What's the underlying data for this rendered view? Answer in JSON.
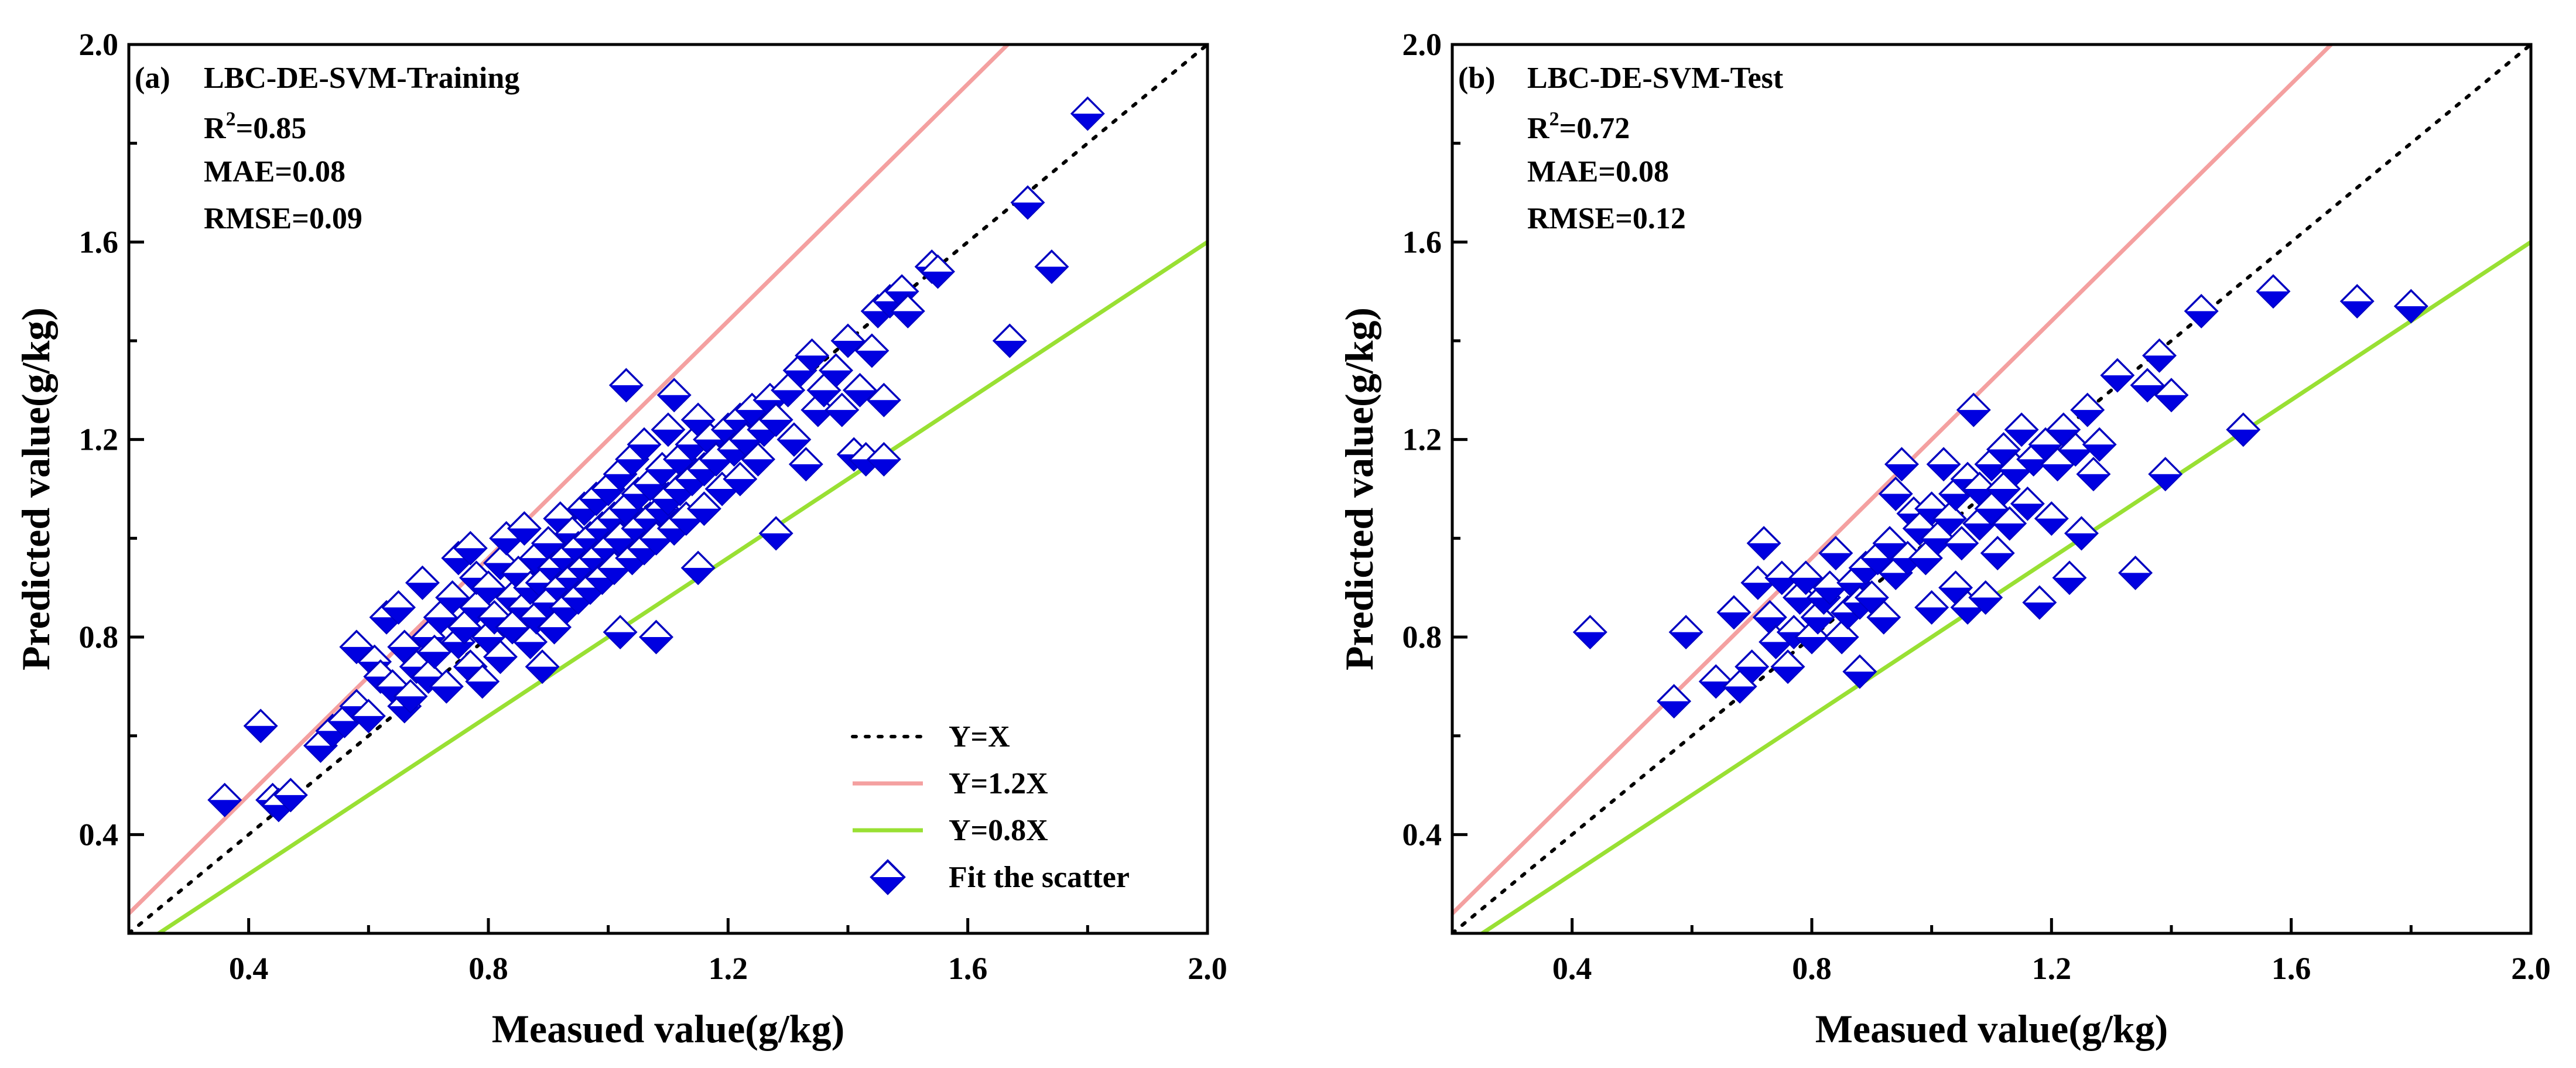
{
  "colors": {
    "one_to_one": "#000000",
    "upper_bound": "#F4A0A0",
    "lower_bound": "#99E033",
    "marker_fill": "#0000E0",
    "marker_edge": "#0000C0"
  },
  "legend": {
    "placement": "bottom-right",
    "items": [
      {
        "label": "Y=X",
        "kind": "dotted-line",
        "series": "one_to_one"
      },
      {
        "label": "Y=1.2X",
        "kind": "line",
        "series": "upper_bound"
      },
      {
        "label": "Y=0.8X",
        "kind": "line",
        "series": "lower_bound"
      },
      {
        "label": "Fit the scatter",
        "kind": "diamond-marker",
        "series": "scatter"
      }
    ]
  },
  "chart_data": [
    {
      "type": "scatter",
      "panel": "(a)",
      "title": "LBC-DE-SVM-Training",
      "metrics": {
        "r2_prefix": "R",
        "r2_sup": "2",
        "r2_value": "=0.85",
        "mae": "MAE=0.08",
        "rmse": "RMSE=0.09"
      },
      "xlabel": "Measued value(g/kg)",
      "ylabel": "Predicted value(g/kg)",
      "xlim": [
        0.2,
        2.0
      ],
      "ylim": [
        0.2,
        2.0
      ],
      "xticks": [
        0.4,
        0.8,
        1.2,
        1.6,
        2.0
      ],
      "yticks": [
        0.4,
        0.8,
        1.2,
        1.6,
        2.0
      ],
      "xtick_labels": [
        "0.4",
        "0.8",
        "1.2",
        "1.6",
        "2.0"
      ],
      "ytick_labels": [
        "0.4",
        "0.8",
        "1.2",
        "1.6",
        "2.0"
      ],
      "reference_lines": [
        {
          "name": "Y=X",
          "slope": 1.0
        },
        {
          "name": "Y=1.2X",
          "slope": 1.2
        },
        {
          "name": "Y=0.8X",
          "slope": 0.8
        }
      ],
      "show_legend": true,
      "points": [
        [
          0.36,
          0.47
        ],
        [
          0.42,
          0.62
        ],
        [
          0.44,
          0.47
        ],
        [
          0.45,
          0.46
        ],
        [
          0.47,
          0.48
        ],
        [
          0.52,
          0.58
        ],
        [
          0.54,
          0.61
        ],
        [
          0.56,
          0.63
        ],
        [
          0.58,
          0.78
        ],
        [
          0.58,
          0.66
        ],
        [
          0.6,
          0.64
        ],
        [
          0.61,
          0.75
        ],
        [
          0.62,
          0.72
        ],
        [
          0.63,
          0.84
        ],
        [
          0.64,
          0.7
        ],
        [
          0.65,
          0.86
        ],
        [
          0.66,
          0.66
        ],
        [
          0.66,
          0.78
        ],
        [
          0.67,
          0.68
        ],
        [
          0.68,
          0.74
        ],
        [
          0.69,
          0.91
        ],
        [
          0.7,
          0.72
        ],
        [
          0.7,
          0.8
        ],
        [
          0.71,
          0.77
        ],
        [
          0.72,
          0.84
        ],
        [
          0.73,
          0.7
        ],
        [
          0.74,
          0.88
        ],
        [
          0.75,
          0.96
        ],
        [
          0.75,
          0.79
        ],
        [
          0.76,
          0.82
        ],
        [
          0.77,
          0.98
        ],
        [
          0.77,
          0.74
        ],
        [
          0.78,
          0.86
        ],
        [
          0.78,
          0.92
        ],
        [
          0.79,
          0.71
        ],
        [
          0.8,
          0.8
        ],
        [
          0.8,
          0.9
        ],
        [
          0.81,
          0.84
        ],
        [
          0.82,
          0.95
        ],
        [
          0.82,
          0.76
        ],
        [
          0.83,
          1.0
        ],
        [
          0.84,
          0.88
        ],
        [
          0.84,
          0.82
        ],
        [
          0.85,
          0.93
        ],
        [
          0.86,
          0.86
        ],
        [
          0.86,
          1.02
        ],
        [
          0.87,
          0.79
        ],
        [
          0.87,
          0.9
        ],
        [
          0.88,
          0.96
        ],
        [
          0.88,
          0.84
        ],
        [
          0.89,
          0.91
        ],
        [
          0.89,
          0.74
        ],
        [
          0.9,
          0.99
        ],
        [
          0.9,
          0.87
        ],
        [
          0.91,
          0.94
        ],
        [
          0.91,
          0.82
        ],
        [
          0.92,
          1.04
        ],
        [
          0.92,
          0.9
        ],
        [
          0.93,
          0.96
        ],
        [
          0.93,
          0.86
        ],
        [
          0.94,
          1.01
        ],
        [
          0.94,
          0.92
        ],
        [
          0.95,
          0.98
        ],
        [
          0.95,
          0.88
        ],
        [
          0.96,
          1.06
        ],
        [
          0.96,
          0.94
        ],
        [
          0.97,
          1.0
        ],
        [
          0.97,
          0.9
        ],
        [
          0.98,
          1.08
        ],
        [
          0.98,
          0.96
        ],
        [
          0.99,
          1.02
        ],
        [
          0.99,
          0.92
        ],
        [
          1.0,
          1.1
        ],
        [
          1.0,
          0.98
        ],
        [
          1.01,
          1.04
        ],
        [
          1.01,
          0.94
        ],
        [
          1.02,
          1.13
        ],
        [
          1.02,
          1.0
        ],
        [
          1.02,
          0.81
        ],
        [
          1.03,
          1.31
        ],
        [
          1.03,
          1.06
        ],
        [
          1.04,
          0.96
        ],
        [
          1.04,
          1.16
        ],
        [
          1.05,
          1.02
        ],
        [
          1.05,
          1.09
        ],
        [
          1.06,
          0.98
        ],
        [
          1.06,
          1.19
        ],
        [
          1.07,
          1.04
        ],
        [
          1.07,
          1.11
        ],
        [
          1.08,
          1.0
        ],
        [
          1.08,
          0.8
        ],
        [
          1.09,
          1.14
        ],
        [
          1.09,
          1.06
        ],
        [
          1.1,
          1.22
        ],
        [
          1.1,
          1.08
        ],
        [
          1.11,
          1.29
        ],
        [
          1.11,
          1.02
        ],
        [
          1.12,
          1.16
        ],
        [
          1.12,
          1.1
        ],
        [
          1.13,
          1.04
        ],
        [
          1.14,
          1.19
        ],
        [
          1.14,
          1.12
        ],
        [
          1.15,
          0.94
        ],
        [
          1.15,
          1.24
        ],
        [
          1.16,
          1.14
        ],
        [
          1.16,
          1.06
        ],
        [
          1.17,
          1.2
        ],
        [
          1.18,
          1.16
        ],
        [
          1.19,
          1.1
        ],
        [
          1.2,
          1.22
        ],
        [
          1.21,
          1.18
        ],
        [
          1.22,
          1.24
        ],
        [
          1.22,
          1.12
        ],
        [
          1.23,
          1.2
        ],
        [
          1.24,
          1.26
        ],
        [
          1.25,
          1.16
        ],
        [
          1.26,
          1.22
        ],
        [
          1.27,
          1.28
        ],
        [
          1.28,
          1.01
        ],
        [
          1.28,
          1.24
        ],
        [
          1.3,
          1.3
        ],
        [
          1.31,
          1.2
        ],
        [
          1.32,
          1.34
        ],
        [
          1.33,
          1.15
        ],
        [
          1.34,
          1.37
        ],
        [
          1.35,
          1.26
        ],
        [
          1.36,
          1.3
        ],
        [
          1.38,
          1.34
        ],
        [
          1.39,
          1.26
        ],
        [
          1.4,
          1.4
        ],
        [
          1.41,
          1.17
        ],
        [
          1.42,
          1.3
        ],
        [
          1.43,
          1.16
        ],
        [
          1.44,
          1.38
        ],
        [
          1.45,
          1.46
        ],
        [
          1.46,
          1.28
        ],
        [
          1.46,
          1.16
        ],
        [
          1.47,
          1.48
        ],
        [
          1.49,
          1.5
        ],
        [
          1.5,
          1.46
        ],
        [
          1.54,
          1.55
        ],
        [
          1.55,
          1.54
        ],
        [
          1.67,
          1.4
        ],
        [
          1.7,
          1.68
        ],
        [
          1.74,
          1.55
        ],
        [
          1.8,
          1.86
        ]
      ]
    },
    {
      "type": "scatter",
      "panel": "(b)",
      "title": "LBC-DE-SVM-Test",
      "metrics": {
        "r2_prefix": "R",
        "r2_sup": "2",
        "r2_value": "=0.72",
        "mae": "MAE=0.08",
        "rmse": "RMSE=0.12"
      },
      "xlabel": "Measued value(g/kg)",
      "ylabel": "Predicted value(g/kg)",
      "xlim": [
        0.2,
        2.0
      ],
      "ylim": [
        0.2,
        2.0
      ],
      "xticks": [
        0.4,
        0.8,
        1.2,
        1.6,
        2.0
      ],
      "yticks": [
        0.4,
        0.8,
        1.2,
        1.6,
        2.0
      ],
      "xtick_labels": [
        "0.4",
        "0.8",
        "1.2",
        "1.6",
        "2.0"
      ],
      "ytick_labels": [
        "0.4",
        "0.8",
        "1.2",
        "1.6",
        "2.0"
      ],
      "reference_lines": [
        {
          "name": "Y=X",
          "slope": 1.0
        },
        {
          "name": "Y=1.2X",
          "slope": 1.2
        },
        {
          "name": "Y=0.8X",
          "slope": 0.8
        }
      ],
      "show_legend": false,
      "points": [
        [
          0.43,
          0.81
        ],
        [
          0.57,
          0.67
        ],
        [
          0.59,
          0.81
        ],
        [
          0.64,
          0.71
        ],
        [
          0.67,
          0.85
        ],
        [
          0.68,
          0.7
        ],
        [
          0.7,
          0.74
        ],
        [
          0.71,
          0.91
        ],
        [
          0.72,
          0.99
        ],
        [
          0.73,
          0.84
        ],
        [
          0.74,
          0.79
        ],
        [
          0.75,
          0.92
        ],
        [
          0.76,
          0.74
        ],
        [
          0.77,
          0.81
        ],
        [
          0.78,
          0.88
        ],
        [
          0.79,
          0.92
        ],
        [
          0.8,
          0.8
        ],
        [
          0.81,
          0.84
        ],
        [
          0.82,
          0.88
        ],
        [
          0.83,
          0.9
        ],
        [
          0.84,
          0.97
        ],
        [
          0.85,
          0.8
        ],
        [
          0.86,
          0.85
        ],
        [
          0.87,
          0.91
        ],
        [
          0.88,
          0.73
        ],
        [
          0.88,
          0.87
        ],
        [
          0.89,
          0.94
        ],
        [
          0.9,
          0.88
        ],
        [
          0.91,
          0.96
        ],
        [
          0.92,
          0.84
        ],
        [
          0.93,
          0.99
        ],
        [
          0.94,
          1.09
        ],
        [
          0.94,
          0.93
        ],
        [
          0.95,
          1.15
        ],
        [
          0.96,
          0.96
        ],
        [
          0.97,
          1.05
        ],
        [
          0.98,
          1.02
        ],
        [
          0.99,
          0.96
        ],
        [
          1.0,
          0.86
        ],
        [
          1.0,
          1.06
        ],
        [
          1.01,
          1.0
        ],
        [
          1.02,
          1.15
        ],
        [
          1.03,
          1.04
        ],
        [
          1.04,
          0.9
        ],
        [
          1.04,
          1.09
        ],
        [
          1.05,
          0.99
        ],
        [
          1.06,
          1.12
        ],
        [
          1.06,
          0.86
        ],
        [
          1.07,
          1.26
        ],
        [
          1.08,
          1.03
        ],
        [
          1.08,
          1.1
        ],
        [
          1.09,
          0.88
        ],
        [
          1.1,
          1.15
        ],
        [
          1.1,
          1.06
        ],
        [
          1.11,
          0.97
        ],
        [
          1.12,
          1.18
        ],
        [
          1.12,
          1.1
        ],
        [
          1.13,
          1.03
        ],
        [
          1.14,
          1.14
        ],
        [
          1.15,
          1.22
        ],
        [
          1.16,
          1.07
        ],
        [
          1.17,
          1.16
        ],
        [
          1.18,
          0.87
        ],
        [
          1.19,
          1.19
        ],
        [
          1.2,
          1.04
        ],
        [
          1.21,
          1.15
        ],
        [
          1.22,
          1.22
        ],
        [
          1.23,
          0.92
        ],
        [
          1.24,
          1.18
        ],
        [
          1.25,
          1.01
        ],
        [
          1.26,
          1.26
        ],
        [
          1.27,
          1.13
        ],
        [
          1.28,
          1.19
        ],
        [
          1.31,
          1.33
        ],
        [
          1.34,
          0.93
        ],
        [
          1.36,
          1.31
        ],
        [
          1.38,
          1.37
        ],
        [
          1.39,
          1.13
        ],
        [
          1.4,
          1.29
        ],
        [
          1.45,
          1.46
        ],
        [
          1.52,
          1.22
        ],
        [
          1.57,
          1.5
        ],
        [
          1.71,
          1.48
        ],
        [
          1.8,
          1.47
        ]
      ]
    }
  ]
}
